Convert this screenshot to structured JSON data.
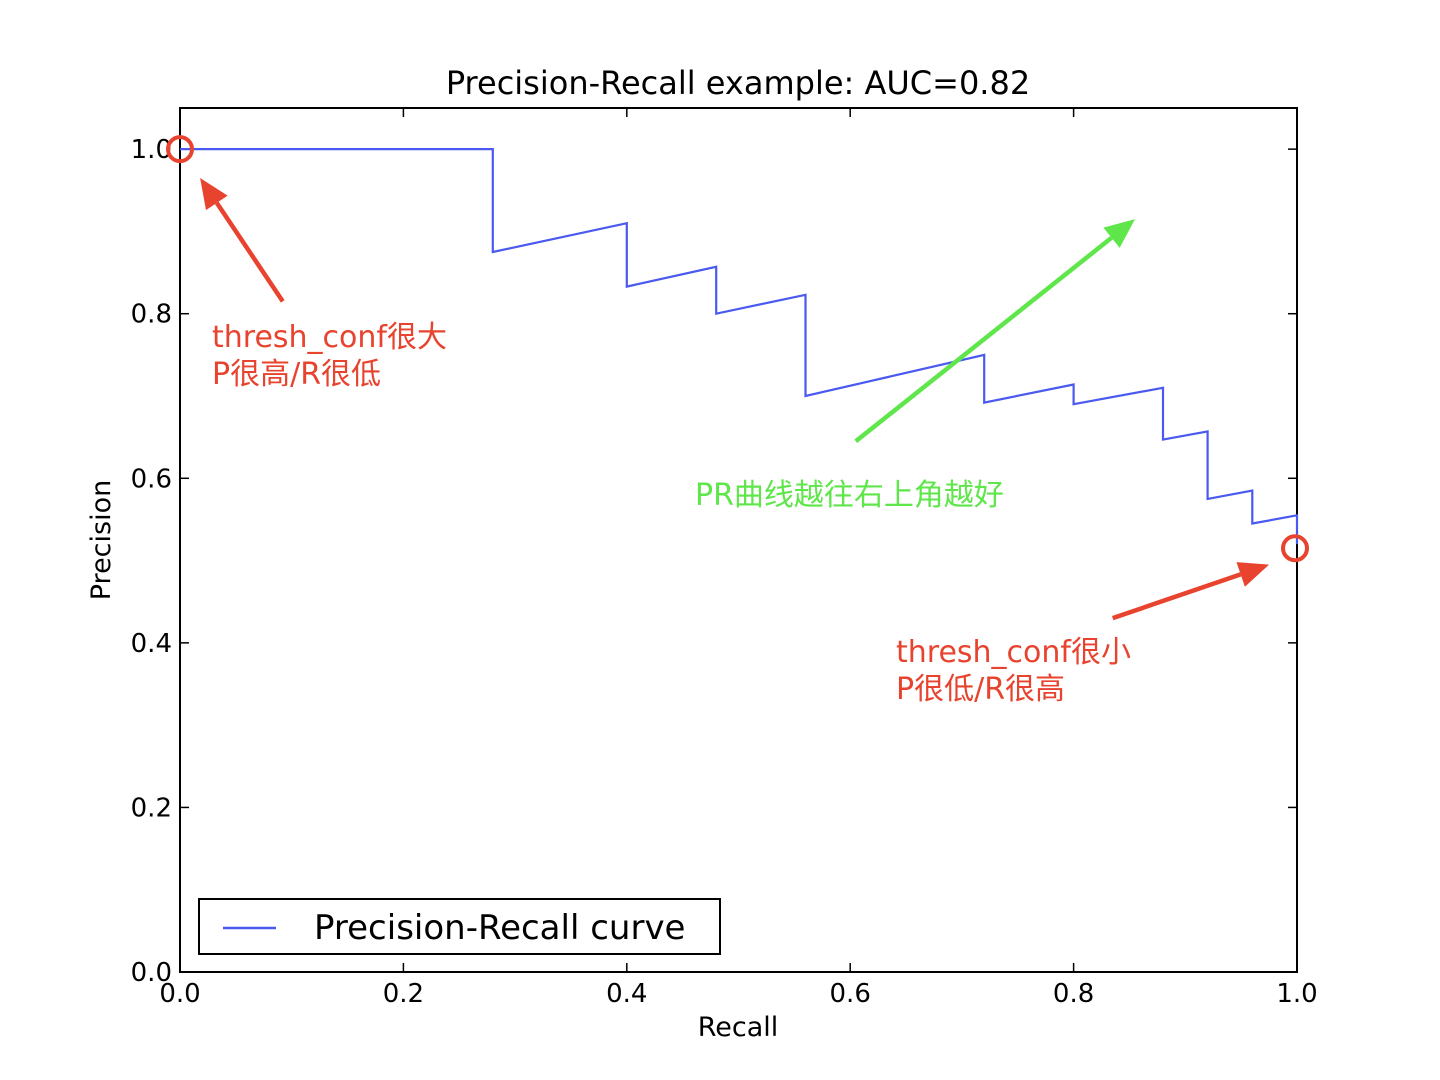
{
  "chart_data": {
    "type": "line",
    "title": "Precision-Recall example: AUC=0.82",
    "xlabel": "Recall",
    "ylabel": "Precision",
    "xlim": [
      0.0,
      1.0
    ],
    "ylim": [
      0.0,
      1.05
    ],
    "xticks": [
      0.0,
      0.2,
      0.4,
      0.6,
      0.8,
      1.0
    ],
    "xtick_labels": [
      "0.0",
      "0.2",
      "0.4",
      "0.6",
      "0.8",
      "1.0"
    ],
    "yticks": [
      0.0,
      0.2,
      0.4,
      0.6,
      0.8,
      1.0
    ],
    "ytick_labels": [
      "0.0",
      "0.2",
      "0.4",
      "0.6",
      "0.8",
      "1.0"
    ],
    "grid": false,
    "legend_position": "lower-left",
    "series": [
      {
        "name": "Precision-Recall curve",
        "color": "#4a5af0",
        "x": [
          0.0,
          0.28,
          0.28,
          0.4,
          0.4,
          0.48,
          0.48,
          0.56,
          0.56,
          0.72,
          0.72,
          0.8,
          0.8,
          0.88,
          0.88,
          0.92,
          0.92,
          0.96,
          0.96,
          1.0,
          1.0
        ],
        "y": [
          1.0,
          1.0,
          0.875,
          0.91,
          0.833,
          0.857,
          0.8,
          0.823,
          0.7,
          0.75,
          0.692,
          0.714,
          0.69,
          0.71,
          0.647,
          0.657,
          0.575,
          0.585,
          0.545,
          0.555,
          0.52
        ]
      }
    ],
    "annotations": [
      {
        "id": "high-threshold",
        "lines": [
          "thresh_conf很大",
          "P很高/R很低"
        ],
        "color": "#e8432e",
        "marker_point": [
          0.0,
          1.0
        ],
        "arrow_from": [
          0.092,
          0.815
        ],
        "arrow_to": [
          0.018,
          0.965
        ]
      },
      {
        "id": "low-threshold",
        "lines": [
          "thresh_conf很小",
          "P很低/R很高"
        ],
        "color": "#e8432e",
        "marker_point": [
          1.0,
          0.515
        ],
        "arrow_from": [
          0.835,
          0.43
        ],
        "arrow_to": [
          0.975,
          0.495
        ]
      },
      {
        "id": "trend",
        "lines": [
          "PR曲线越往右上角越好"
        ],
        "color": "#5ee64a",
        "arrow_from": [
          0.605,
          0.645
        ],
        "arrow_to": [
          0.855,
          0.915
        ]
      }
    ]
  }
}
